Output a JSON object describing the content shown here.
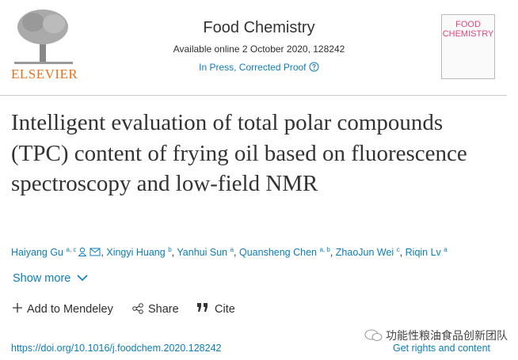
{
  "header": {
    "publisher": "ELSEVIER",
    "journal": "Food Chemistry",
    "availability": "Available online 2 October 2020, 128242",
    "status": "In Press, Corrected Proof",
    "cover_title": [
      "FOOD",
      "CHEMISTRY"
    ]
  },
  "article": {
    "title": "Intelligent evaluation of total polar compounds (TPC) content of frying oil based on fluorescence spectroscopy and low-field NMR",
    "authors": [
      {
        "name": "Haiyang Gu",
        "affiliations": "a, c"
      },
      {
        "name": "Xingyi Huang",
        "affiliations": "b"
      },
      {
        "name": "Yanhui Sun",
        "affiliations": "a"
      },
      {
        "name": "Quansheng Chen",
        "affiliations": "a, b"
      },
      {
        "name": "ZhaoJun Wei",
        "affiliations": "c"
      },
      {
        "name": "Riqin Lv",
        "affiliations": "a"
      }
    ],
    "show_more": "Show more",
    "doi": "https://doi.org/10.1016/j.foodchem.2020.128242",
    "rights": "Get rights and content"
  },
  "actions": [
    "Add to Mendeley",
    "Share",
    "Cite"
  ],
  "watermark": "功能性粮油食品创新团队"
}
